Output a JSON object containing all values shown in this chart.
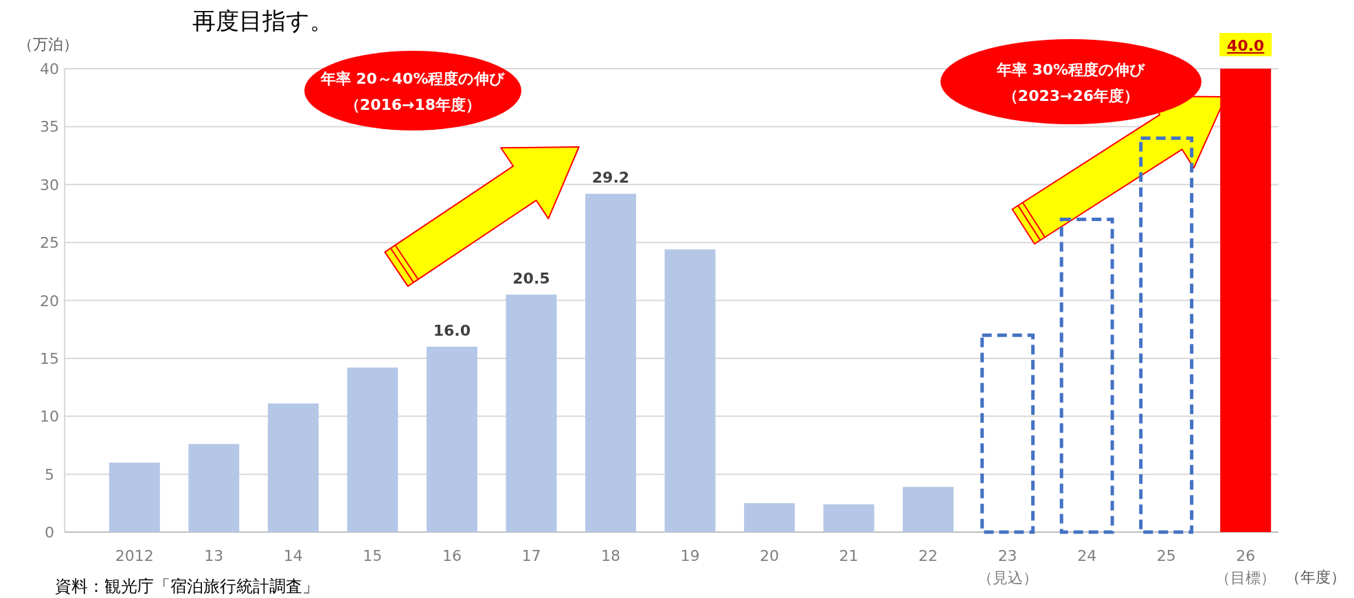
{
  "chart_data": {
    "type": "bar",
    "title": "再度目指す。",
    "ylabel": "（万泊）",
    "xlabel": "（年度）",
    "categories": [
      "2012",
      "13",
      "14",
      "15",
      "16",
      "17",
      "18",
      "19",
      "20",
      "21",
      "22",
      "23\n（見込）",
      "24",
      "25",
      "26\n（目標）"
    ],
    "grid": "y",
    "ylim": [
      0,
      40
    ],
    "yticks": [
      0,
      5,
      10,
      15,
      20,
      25,
      30,
      35,
      40
    ],
    "series": [
      {
        "color": "#b4c7e7",
        "values": [
          6.0,
          7.6,
          11.1,
          14.2,
          16.0,
          20.5,
          29.2,
          24.4,
          2.5,
          2.4,
          3.9,
          null,
          null,
          null,
          null
        ],
        "value_labels": [
          null,
          null,
          null,
          null,
          "16.0",
          "20.5",
          "29.2",
          null,
          null,
          null,
          null,
          null,
          null,
          null,
          null
        ]
      },
      {
        "color": "#4472c4",
        "line_style": "dashed",
        "values": [
          null,
          null,
          null,
          null,
          null,
          null,
          null,
          null,
          null,
          null,
          null,
          17.0,
          27.0,
          34.0,
          null
        ]
      },
      {
        "color": "#ff0000",
        "values": [
          null,
          null,
          null,
          null,
          null,
          null,
          null,
          null,
          null,
          null,
          null,
          null,
          null,
          null,
          40.0
        ],
        "value_labels": [
          null,
          null,
          null,
          null,
          null,
          null,
          null,
          null,
          null,
          null,
          null,
          null,
          null,
          null,
          "40.0"
        ]
      }
    ],
    "annotations": [
      "年率 20～40%程度の伸び",
      "（2016→18年度）",
      "年率 30%程度の伸び",
      "（2023→26年度）",
      "資料：観光庁「宿泊旅行統計調査」"
    ]
  }
}
